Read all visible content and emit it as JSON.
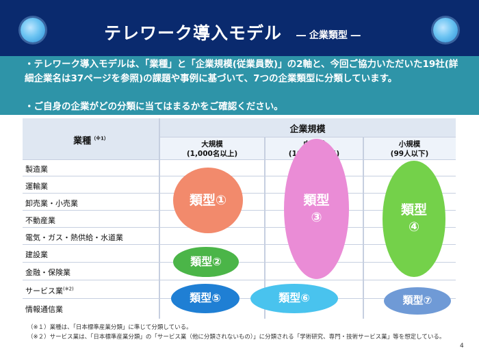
{
  "header": {
    "title": "テレワーク導入モデル",
    "subtitle": "― 企業類型 ―"
  },
  "intro": {
    "line1": "・テレワーク導入モデルは、「業種」と「企業規模(従業員数)」の2軸と、今回ご協力いただいた19社(詳細企業名は37ページを参照)の課題や事例に基づいて、7つの企業類型に分類しています。",
    "line2": "・ご自身の企業がどの分類に当てはまるかをご確認ください。"
  },
  "table": {
    "industry_header": "業種",
    "industry_note": "（※1）",
    "size_header": "企業規模",
    "size_columns": [
      {
        "name": "大規模",
        "range": "(1,000名以上)"
      },
      {
        "name": "中規模",
        "range": "(100〜999名)"
      },
      {
        "name": "小規模",
        "range": "(99人以下)"
      }
    ],
    "industries": [
      "製造業",
      "運輸業",
      "卸売業・小売業",
      "不動産業",
      "電気・ガス・熱供給・水道業",
      "建設業",
      "金融・保険業",
      "サービス業",
      "情報通信業"
    ],
    "service_note": "(※2)"
  },
  "types": {
    "t1": "類型①",
    "t2": "類型②",
    "t3a": "類型",
    "t3b": "③",
    "t4a": "類型",
    "t4b": "④",
    "t5": "類型⑤",
    "t6": "類型⑥",
    "t7": "類型⑦"
  },
  "colors": {
    "t1": "#f28a6c",
    "t2": "#4bb548",
    "t3": "#ea8cd6",
    "t4": "#74d14a",
    "t5": "#1f7fd4",
    "t6": "#49c3ee",
    "t7": "#6f9ad6"
  },
  "notes": {
    "n1": "（※１）業種は、「日本標準産業分類」に準じて分類している。",
    "n2": "（※２）サービス業は、「日本標準産業分類」の「サービス業（他に分類されないもの）」に分類される「学術研究、専門・技術サービス業」等を想定している。"
  },
  "page_number": "4"
}
